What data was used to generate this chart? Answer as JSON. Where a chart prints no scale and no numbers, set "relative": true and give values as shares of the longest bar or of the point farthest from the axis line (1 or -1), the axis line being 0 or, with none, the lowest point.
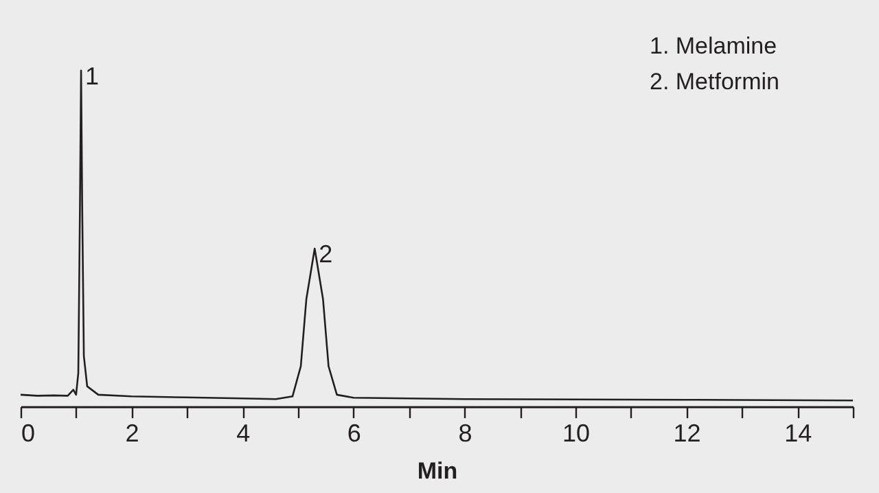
{
  "chart_data": {
    "type": "line",
    "relative": true,
    "xlabel": "Min",
    "x": [
      0,
      0.3,
      0.6,
      0.85,
      0.95,
      1.0,
      1.04,
      1.07,
      1.09,
      1.11,
      1.14,
      1.2,
      1.4,
      2,
      3,
      4,
      4.6,
      4.9,
      5.05,
      5.15,
      5.3,
      5.45,
      5.55,
      5.7,
      6,
      8,
      10,
      12,
      15
    ],
    "series": [
      {
        "color": "#231f20",
        "values": [
          0.035,
          0.032,
          0.033,
          0.032,
          0.05,
          0.035,
          0.1,
          0.6,
          1.0,
          0.6,
          0.15,
          0.06,
          0.035,
          0.03,
          0.027,
          0.024,
          0.022,
          0.03,
          0.12,
          0.32,
          0.47,
          0.32,
          0.12,
          0.035,
          0.026,
          0.022,
          0.021,
          0.02,
          0.018
        ]
      }
    ],
    "xlim": [
      0,
      15
    ],
    "xticks": [
      0,
      {
        "value": 1,
        "label": null
      },
      2,
      {
        "value": 3,
        "label": null
      },
      4,
      {
        "value": 5,
        "label": null
      },
      6,
      {
        "value": 7,
        "label": null
      },
      8,
      {
        "value": 9,
        "label": null
      },
      10,
      {
        "value": 11,
        "label": null
      },
      12,
      {
        "value": 13,
        "label": null
      },
      14,
      {
        "value": 15,
        "label": null
      }
    ],
    "annotations": [
      {
        "text": "1",
        "x": 1.09,
        "y": 1.0
      },
      {
        "text": "2",
        "x": 5.3,
        "y": 0.47
      },
      "1. Melamine",
      "2. Metformin"
    ]
  }
}
